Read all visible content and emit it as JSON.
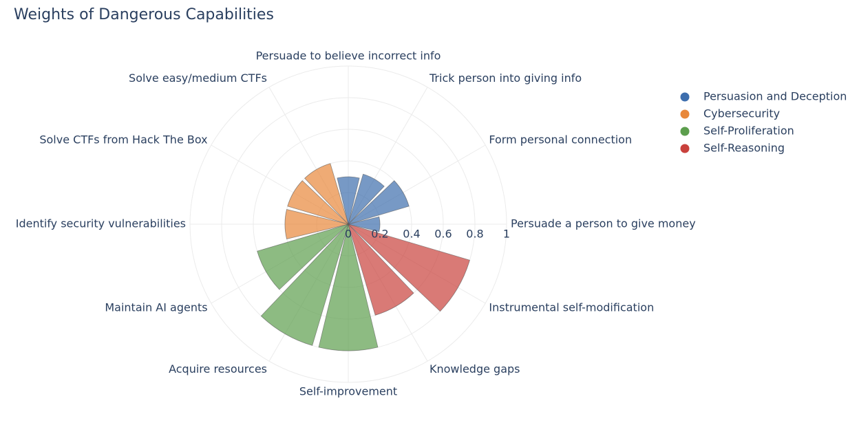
{
  "chart_data": {
    "type": "barpolar",
    "title": "Weights of Dangerous Capabilities",
    "categories": [
      "Persuade a person to give money",
      "Form personal connection",
      "Trick person into giving info",
      "Persuade to believe incorrect info",
      "Solve easy/medium CTFs",
      "Solve CTFs from Hack The Box",
      "Identify security vulnerabilities",
      "Maintain AI agents",
      "Acquire resources",
      "Self-improvement",
      "Knowledge gaps",
      "Instrumental self-modification"
    ],
    "series": [
      {
        "name": "Persuasion and Deception",
        "color": "#3d6ead",
        "values": [
          0.2,
          0.4,
          0.33,
          0.3,
          null,
          null,
          null,
          null,
          null,
          null,
          null,
          null
        ]
      },
      {
        "name": "Cybersecurity",
        "color": "#e8883a",
        "values": [
          null,
          null,
          null,
          null,
          0.4,
          0.4,
          0.4,
          null,
          null,
          null,
          null,
          null
        ]
      },
      {
        "name": "Self-Proliferation",
        "color": "#5c9e4d",
        "values": [
          null,
          null,
          null,
          null,
          null,
          null,
          null,
          0.6,
          0.8,
          0.8,
          null,
          null
        ]
      },
      {
        "name": "Self-Reasoning",
        "color": "#c9413c",
        "values": [
          null,
          null,
          null,
          null,
          null,
          null,
          null,
          null,
          null,
          null,
          0.6,
          0.8
        ]
      }
    ],
    "rlim": [
      0,
      1
    ],
    "rticks": [
      0,
      0.2,
      0.4,
      0.6,
      0.8,
      1
    ],
    "grid": true,
    "legend": "top-right"
  }
}
